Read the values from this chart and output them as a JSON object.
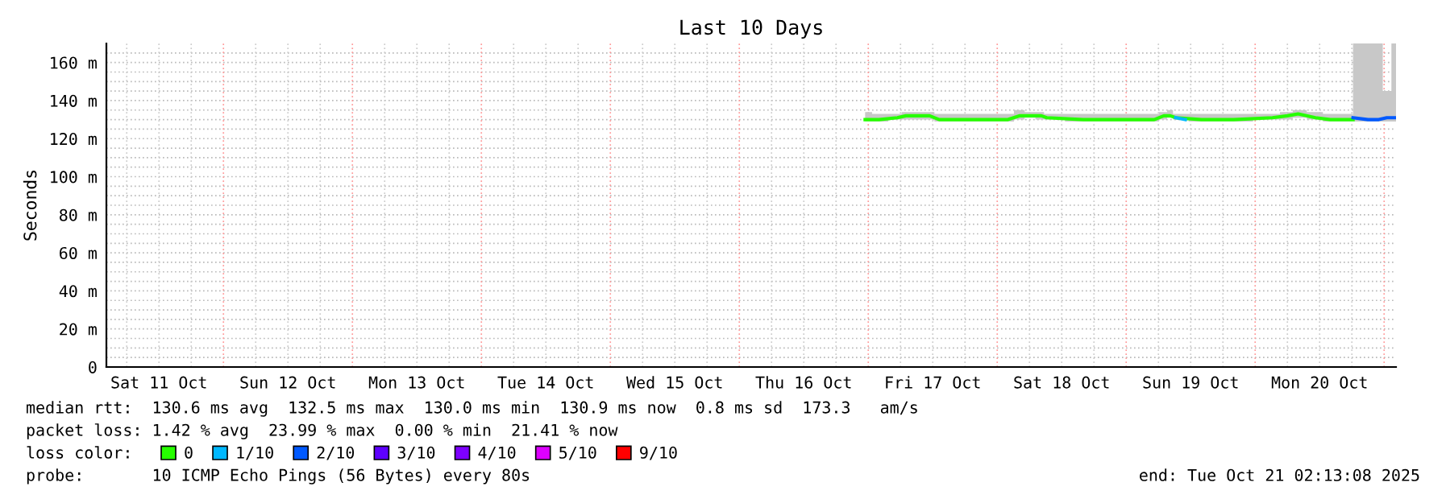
{
  "chart_data": {
    "type": "line",
    "title": "Last 10 Days",
    "ylabel": "Seconds",
    "legend_title": "loss color:",
    "legend": "bottom",
    "grid": true,
    "marker": "none",
    "line_style": "solid",
    "xlim": [
      "2025-10-11T02:13",
      "2025-10-21T02:13"
    ],
    "xticks": [
      {
        "value": "2025-10-11T12:00",
        "label": "Sat 11 Oct"
      },
      {
        "value": "2025-10-12T12:00",
        "label": "Sun 12 Oct"
      },
      {
        "value": "2025-10-13T12:00",
        "label": "Mon 13 Oct"
      },
      {
        "value": "2025-10-14T12:00",
        "label": "Tue 14 Oct"
      },
      {
        "value": "2025-10-15T12:00",
        "label": "Wed 15 Oct"
      },
      {
        "value": "2025-10-16T12:00",
        "label": "Thu 16 Oct"
      },
      {
        "value": "2025-10-17T12:00",
        "label": "Fri 17 Oct"
      },
      {
        "value": "2025-10-18T12:00",
        "label": "Sat 18 Oct"
      },
      {
        "value": "2025-10-19T12:00",
        "label": "Sun 19 Oct"
      },
      {
        "value": "2025-10-20T12:00",
        "label": "Mon 20 Oct"
      }
    ],
    "ylim": [
      0,
      170
    ],
    "yticks": [
      0,
      {
        "value": 20,
        "label": "20 m"
      },
      {
        "value": 40,
        "label": "40 m"
      },
      {
        "value": 60,
        "label": "60 m"
      },
      {
        "value": 80,
        "label": "80 m"
      },
      {
        "value": 100,
        "label": "100 m"
      },
      {
        "value": 120,
        "label": "120 m"
      },
      {
        "value": 140,
        "label": "140 m"
      },
      {
        "value": 160,
        "label": "160 m"
      }
    ],
    "series": [
      {
        "name": "0",
        "color": "#26ff00",
        "x": [
          "2025-10-16T23:25",
          "2025-10-17T02:00",
          "2025-10-17T05:25",
          "2025-10-17T07:00",
          "2025-10-17T11:25",
          "2025-10-17T13:13",
          "2025-10-17T20:00",
          "2025-10-18T02:00",
          "2025-10-18T04:13",
          "2025-10-18T06:00",
          "2025-10-18T08:13",
          "2025-10-18T09:13",
          "2025-10-18T16:00",
          "2025-10-18T22:00",
          "2025-10-19T05:13",
          "2025-10-19T07:00",
          "2025-10-19T08:13",
          "2025-10-19T09:13",
          "2025-10-19T14:00",
          "2025-10-19T20:00",
          "2025-10-20T03:13",
          "2025-10-20T06:00",
          "2025-10-20T08:00",
          "2025-10-20T11:13",
          "2025-10-20T14:00",
          "2025-10-20T18:13"
        ],
        "values": [
          130,
          130,
          131,
          132,
          132,
          130,
          130,
          130,
          132,
          132,
          132,
          131,
          130,
          130,
          130,
          132,
          132,
          131,
          130,
          130,
          131,
          132,
          133,
          131,
          130,
          130
        ],
        "lower": [
          129,
          129,
          130,
          130,
          130,
          129,
          129,
          129,
          130,
          131,
          130,
          130,
          129,
          129,
          129,
          130,
          131,
          130,
          129,
          129,
          130,
          130,
          131,
          130,
          129,
          129
        ],
        "upper": [
          134,
          133,
          133,
          134,
          134,
          133,
          133,
          133,
          135,
          134,
          134,
          133,
          133,
          133,
          133,
          134,
          135,
          133,
          133,
          133,
          133,
          134,
          135,
          134,
          133,
          133
        ]
      },
      {
        "name": "1/10",
        "color": "#00b8ff",
        "x": [
          "2025-10-19T09:13",
          "2025-10-19T11:00"
        ],
        "values": [
          131,
          130
        ]
      },
      {
        "name": "2/10",
        "color": "#0059ff",
        "x": [
          "2025-10-20T18:13",
          "2025-10-20T21:00",
          "2025-10-20T23:00",
          "2025-10-21T00:30",
          "2025-10-21T02:13"
        ],
        "values": [
          131,
          130,
          130,
          131,
          131
        ],
        "lower": [
          129,
          129,
          129,
          129,
          129
        ],
        "upper": [
          170,
          170,
          170,
          145,
          170
        ]
      },
      {
        "name": "3/10",
        "color": "#5e00ff"
      },
      {
        "name": "4/10",
        "color": "#7e00ff"
      },
      {
        "name": "5/10",
        "color": "#dd00ff"
      },
      {
        "name": "9/10",
        "color": "#ff0000"
      }
    ],
    "ref_lines": [
      {
        "axis": "x",
        "value": "2025-10-12",
        "color": "#ff9999",
        "line_style": "dotted"
      },
      {
        "axis": "x",
        "value": "2025-10-13",
        "color": "#ff9999",
        "line_style": "dotted"
      },
      {
        "axis": "x",
        "value": "2025-10-14",
        "color": "#ff9999",
        "line_style": "dotted"
      },
      {
        "axis": "x",
        "value": "2025-10-15",
        "color": "#ff9999",
        "line_style": "dotted"
      },
      {
        "axis": "x",
        "value": "2025-10-16",
        "color": "#ff9999",
        "line_style": "dotted"
      },
      {
        "axis": "x",
        "value": "2025-10-17",
        "color": "#ff9999",
        "line_style": "dotted"
      },
      {
        "axis": "x",
        "value": "2025-10-18",
        "color": "#ff9999",
        "line_style": "dotted"
      },
      {
        "axis": "x",
        "value": "2025-10-19",
        "color": "#ff9999",
        "line_style": "dotted"
      },
      {
        "axis": "x",
        "value": "2025-10-20",
        "color": "#ff9999",
        "line_style": "dotted"
      },
      {
        "axis": "x",
        "value": "2025-10-21",
        "color": "#ff9999",
        "line_style": "dotted"
      }
    ],
    "annotations": [
      "median rtt:  130.6 ms avg  132.5 ms max  130.0 ms min  130.9 ms now  0.8 ms sd  173.3   am/s",
      "packet loss: 1.42 % avg  23.99 % max  0.00 % min  21.41 % now",
      "probe:       10 ICMP Echo Pings (56 Bytes) every 80s",
      "end: Tue Oct 21 02:13:08 2025"
    ]
  }
}
